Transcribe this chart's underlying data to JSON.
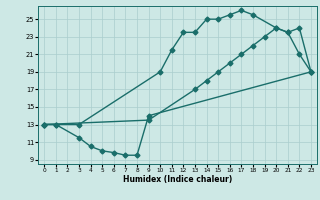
{
  "xlabel": "Humidex (Indice chaleur)",
  "bg_color": "#cde8e5",
  "grid_color": "#aacece",
  "line_color": "#1a6e6a",
  "xlim": [
    -0.5,
    23.5
  ],
  "ylim": [
    8.5,
    26.5
  ],
  "xticks": [
    0,
    1,
    2,
    3,
    4,
    5,
    6,
    7,
    8,
    9,
    10,
    11,
    12,
    13,
    14,
    15,
    16,
    17,
    18,
    19,
    20,
    21,
    22,
    23
  ],
  "yticks": [
    9,
    11,
    13,
    15,
    17,
    19,
    21,
    23,
    25
  ],
  "line1_x": [
    0,
    1,
    3,
    10,
    11,
    12,
    13,
    14,
    15,
    16,
    17,
    18,
    20,
    21,
    22,
    23
  ],
  "line1_y": [
    13,
    13,
    13,
    19,
    21.5,
    23.5,
    23.5,
    25,
    25,
    25.5,
    26,
    25.5,
    24,
    23.5,
    21,
    19
  ],
  "line2_x": [
    0,
    1,
    3,
    4,
    5,
    6,
    7,
    8,
    9,
    23
  ],
  "line2_y": [
    13,
    13,
    11.5,
    10.5,
    10.0,
    9.8,
    9.5,
    9.5,
    14,
    19
  ],
  "line3_x": [
    0,
    9,
    13,
    14,
    15,
    16,
    17,
    18,
    19,
    20,
    21,
    22,
    23
  ],
  "line3_y": [
    13,
    13.5,
    17,
    18,
    19,
    20,
    21,
    22,
    23,
    24,
    23.5,
    24,
    19
  ],
  "marker": "D",
  "markersize": 2.5,
  "linewidth": 1.0
}
